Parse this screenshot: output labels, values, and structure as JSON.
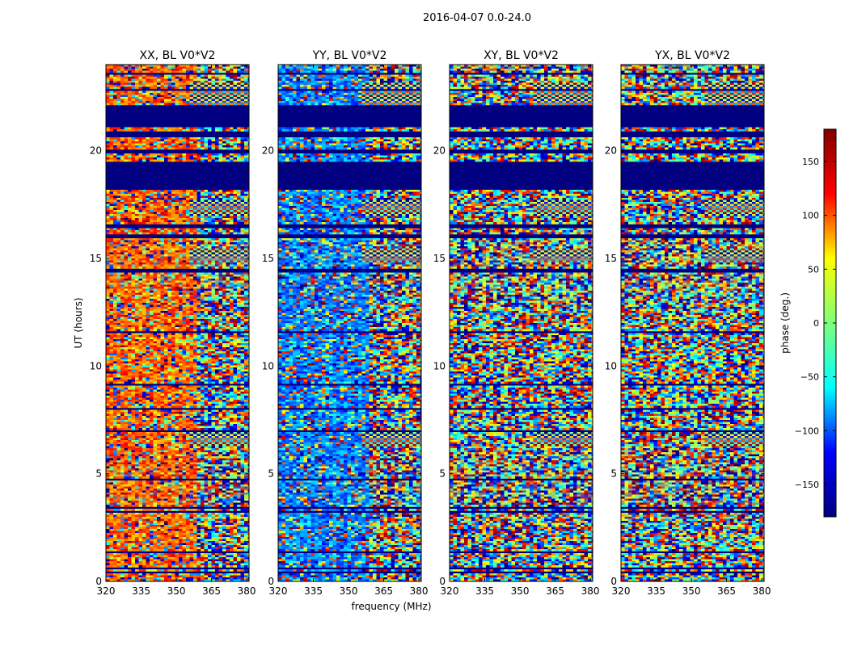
{
  "figure_title": "2016-04-07 0.0-24.0",
  "chart_data": {
    "type": "heatmap",
    "title": "2016-04-07 0.0-24.0",
    "xlabel": "frequency (MHz)",
    "ylabel": "UT (hours)",
    "xlim": [
      320,
      381
    ],
    "ylim": [
      0,
      24
    ],
    "x_ticks": [
      320,
      335,
      350,
      365,
      380
    ],
    "y_ticks": [
      0,
      5,
      10,
      15,
      20
    ],
    "panels": [
      {
        "title": "XX, BL V0*V2",
        "pol": "XX",
        "tint": 100
      },
      {
        "title": "YY, BL V0*V2",
        "pol": "YY",
        "tint": -90
      },
      {
        "title": "XY, BL V0*V2",
        "pol": "XY",
        "tint": 0
      },
      {
        "title": "YX, BL V0*V2",
        "pol": "YX",
        "tint": 0
      }
    ],
    "flagged_hours": [
      [
        0.35,
        0.45
      ],
      [
        0.6,
        0.65
      ],
      [
        1.3,
        1.4
      ],
      [
        3.15,
        3.25
      ],
      [
        3.4,
        3.5
      ],
      [
        4.7,
        4.75
      ],
      [
        6.9,
        7.0
      ],
      [
        8.0,
        8.1
      ],
      [
        9.1,
        9.2
      ],
      [
        11.5,
        11.6
      ],
      [
        14.3,
        14.5
      ],
      [
        15.9,
        16.1
      ],
      [
        16.4,
        16.6
      ],
      [
        18.2,
        19.5
      ],
      [
        19.9,
        20.1
      ],
      [
        20.6,
        20.9
      ],
      [
        21.1,
        22.1
      ],
      [
        22.8,
        22.9
      ],
      [
        23.55,
        23.65
      ]
    ],
    "fringe_bands": [
      [
        6.3,
        6.9
      ],
      [
        14.85,
        15.45
      ],
      [
        17.0,
        17.7
      ],
      [
        22.0,
        23.2
      ]
    ],
    "colorbar": {
      "label": "phase (deg.)",
      "range": [
        -180,
        180
      ],
      "ticks": [
        -150,
        -100,
        -50,
        0,
        50,
        100,
        150
      ],
      "tick_labels": [
        "−150",
        "−100",
        "−50",
        "0",
        "50",
        "100",
        "150"
      ],
      "colormap": "jet",
      "stops": [
        "#000080",
        "#0000ff",
        "#00ffff",
        "#7dff7a",
        "#ffff00",
        "#ff0000",
        "#800000"
      ]
    }
  }
}
